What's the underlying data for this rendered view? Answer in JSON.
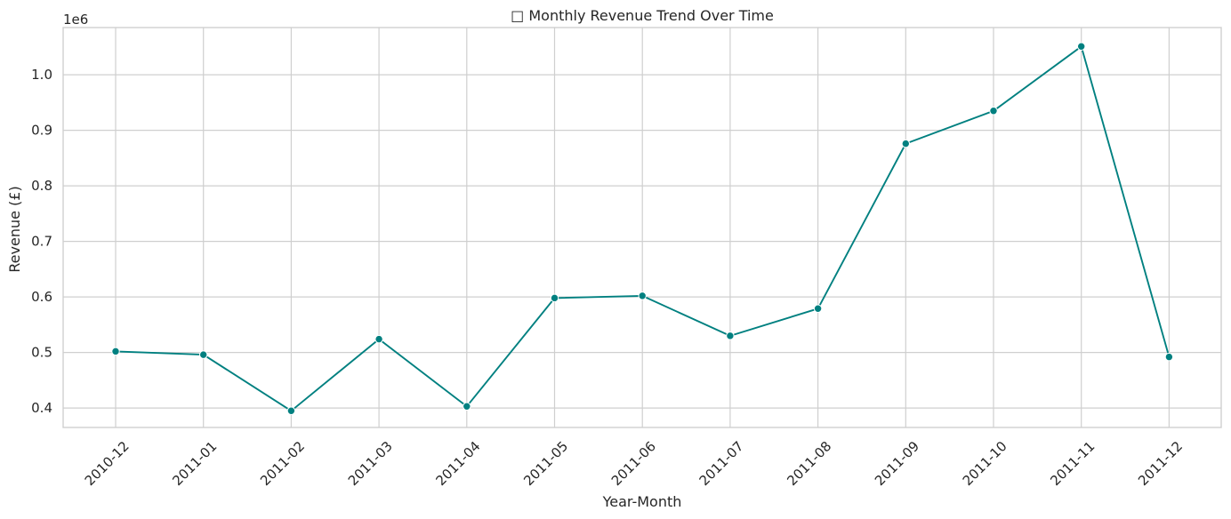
{
  "chart_data": {
    "type": "line",
    "title": "□ Monthly Revenue Trend Over Time",
    "xlabel": "Year-Month",
    "ylabel": "Revenue (£)",
    "y_offset_label": "1e6",
    "categories": [
      "2010-12",
      "2011-01",
      "2011-02",
      "2011-03",
      "2011-04",
      "2011-05",
      "2011-06",
      "2011-07",
      "2011-08",
      "2011-09",
      "2011-10",
      "2011-11",
      "2011-12"
    ],
    "series": [
      {
        "color": "#008080",
        "marker": "circle",
        "values": [
          502000,
          496000,
          395000,
          524000,
          403000,
          598000,
          602000,
          530000,
          579000,
          876000,
          935000,
          1051000,
          492000
        ]
      }
    ],
    "ylim": [
      365000,
      1085000
    ],
    "yticks": [
      400000,
      500000,
      600000,
      700000,
      800000,
      900000,
      1000000
    ],
    "ytick_labels": [
      "0.4",
      "0.5",
      "0.6",
      "0.7",
      "0.8",
      "0.9",
      "1.0"
    ],
    "xtick_rotation_deg": 45,
    "grid": true,
    "legend": "none"
  }
}
